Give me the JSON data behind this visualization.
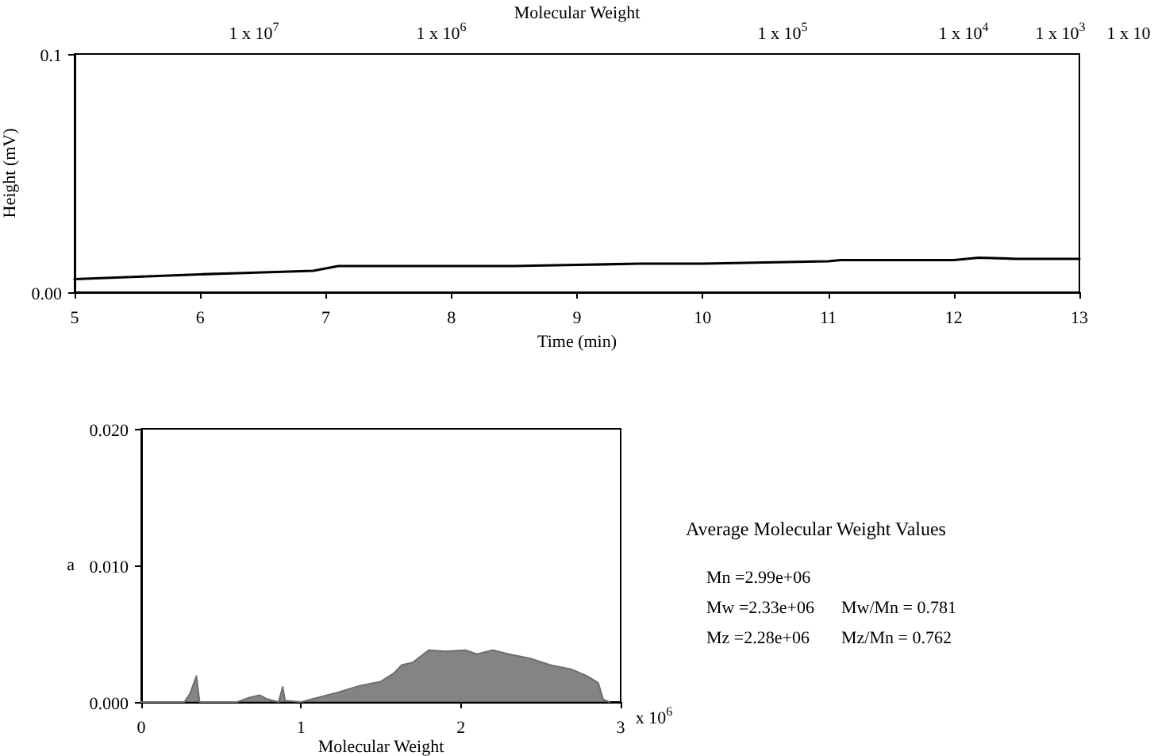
{
  "chart_data": [
    {
      "type": "line",
      "xlabel": "Time (min)",
      "ylabel": "Height (mV)",
      "x2label": "Molecular Weight",
      "marker": "none",
      "line_style": "solid",
      "x": [
        5,
        5.5,
        6,
        6.3,
        6.9,
        7.1,
        7.5,
        8,
        8.5,
        9,
        9.5,
        10,
        10.5,
        11,
        11.1,
        11.5,
        12,
        12.2,
        12.5,
        13
      ],
      "series": [
        {
          "color": "#000000",
          "values": [
            0.0055,
            0.0065,
            0.0075,
            0.008,
            0.009,
            0.011,
            0.011,
            0.011,
            0.011,
            0.0115,
            0.012,
            0.012,
            0.0125,
            0.013,
            0.0135,
            0.0135,
            0.0135,
            0.0145,
            0.014,
            0.014
          ]
        }
      ],
      "xlim": [
        5,
        13
      ],
      "xticks": [
        5,
        6,
        7,
        8,
        9,
        10,
        11,
        12,
        13
      ],
      "ylim": [
        0,
        0.1
      ],
      "yticks": [
        {
          "value": 0,
          "label": "0.00"
        },
        0.1
      ],
      "annotations": [
        "1 x 10$^{7}$",
        "1 x 10$^{6}$",
        "1 x 10$^{5}$",
        "1 x 10$^{4}$",
        "1 x 10$^{3}$",
        "1 x 10"
      ]
    },
    {
      "type": "area",
      "xlabel": "Molecular Weight",
      "ylabel": "a",
      "marker": "none",
      "line_style": "solid",
      "x": [
        0,
        0.27,
        0.305,
        0.345,
        0.365,
        0.6,
        0.67,
        0.74,
        0.79,
        0.86,
        0.885,
        0.9,
        1.0,
        1.1,
        1.23,
        1.37,
        1.5,
        1.58,
        1.63,
        1.7,
        1.8,
        1.9,
        2.03,
        2.1,
        2.2,
        2.3,
        2.43,
        2.56,
        2.69,
        2.79,
        2.86,
        2.89,
        2.93
      ],
      "series": [
        {
          "color": "#6e6e6e",
          "values": [
            0,
            0,
            0.0006,
            0.0019,
            0,
            0,
            0.0003,
            0.0005,
            0.0002,
            0,
            0.0011,
            0.0001,
            0,
            0.0003,
            0.0007,
            0.0012,
            0.0015,
            0.0021,
            0.0027,
            0.0029,
            0.0038,
            0.0037,
            0.0038,
            0.0035,
            0.0038,
            0.0035,
            0.0032,
            0.0027,
            0.0024,
            0.0019,
            0.0014,
            0.0002,
            0
          ]
        }
      ],
      "xlim": [
        0,
        3
      ],
      "xticks": [
        0,
        1,
        2,
        3
      ],
      "ylim": [
        0,
        0.02
      ],
      "yticks": [
        {
          "value": 0,
          "label": "0.000"
        },
        {
          "value": 0.01,
          "label": "0.010"
        },
        {
          "value": 0.02,
          "label": "0.020"
        }
      ],
      "annotations": [
        "x 10$^{6}$"
      ]
    },
    {
      "type": "other",
      "title": "Average Molecular Weight Values",
      "annotations": [
        "Mn =2.99e+06",
        "Mw =2.33e+06",
        "Mw/Mn = 0.781",
        "Mz =2.28e+06",
        "Mz/Mn = 0.762"
      ]
    }
  ]
}
